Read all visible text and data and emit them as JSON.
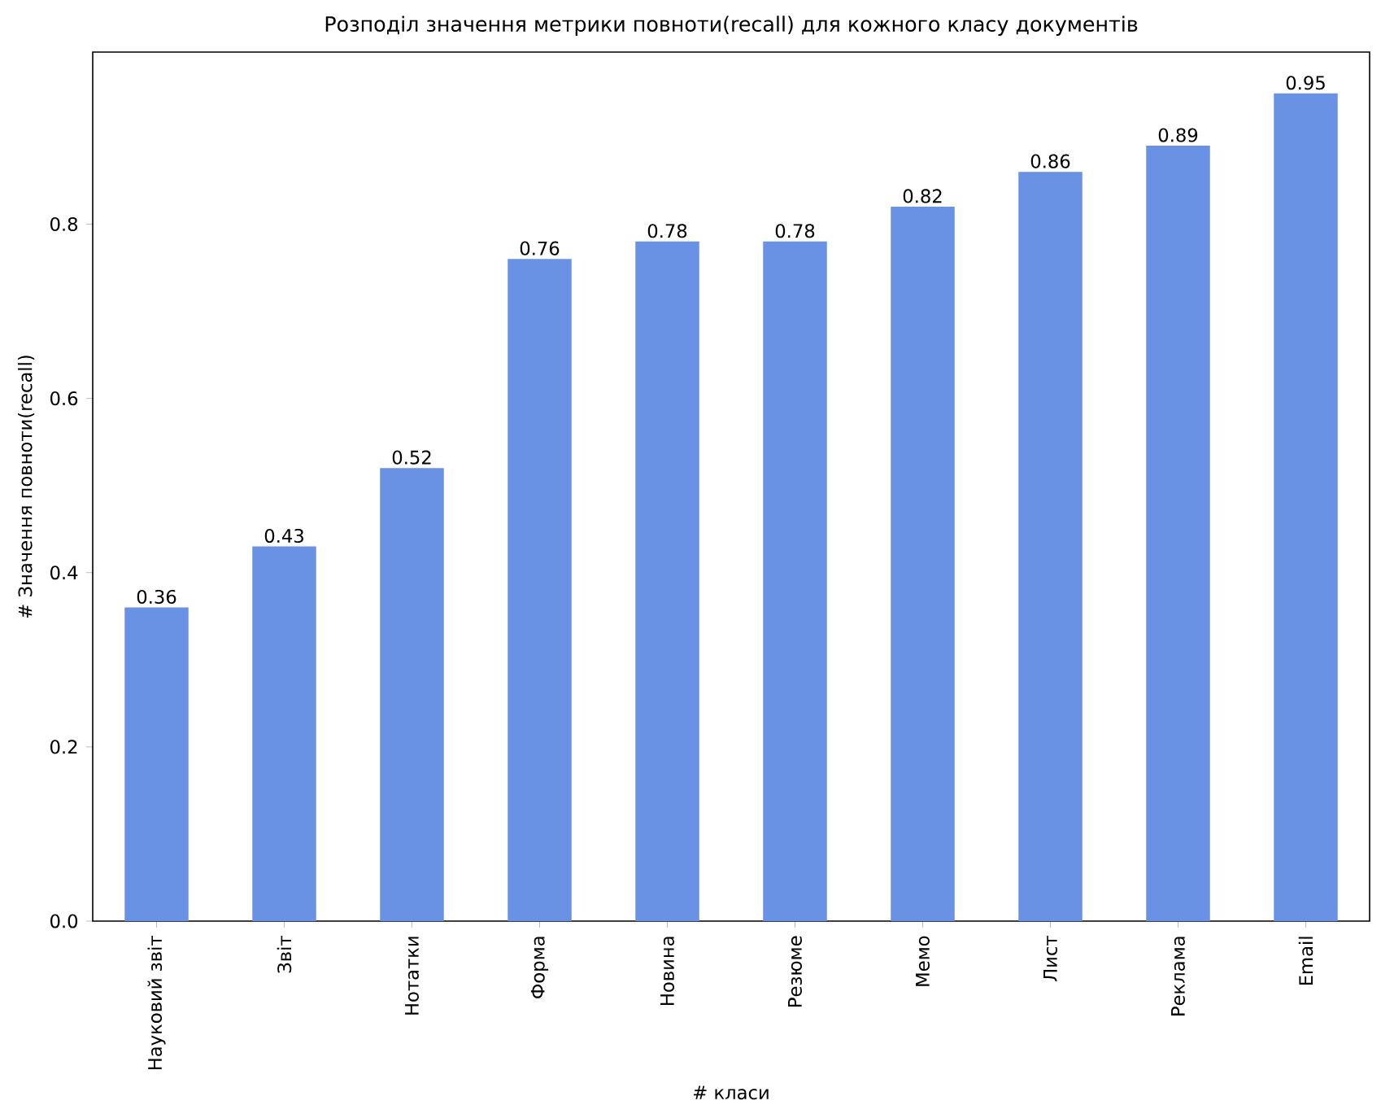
{
  "chart_data": {
    "type": "bar",
    "title": "Розподіл значення метрики повноти(recall) для кожного класу документів",
    "xlabel": "# класи",
    "ylabel": "# Значення повноти(recall)",
    "categories": [
      "Науковий звіт",
      "Звіт",
      "Нотатки",
      "Форма",
      "Новина",
      "Резюме",
      "Мемо",
      "Лист",
      "Реклама",
      "Email"
    ],
    "values": [
      0.36,
      0.43,
      0.52,
      0.76,
      0.78,
      0.78,
      0.82,
      0.86,
      0.89,
      0.95
    ],
    "color": "#6a92e4",
    "data_labels": true,
    "ylim": [
      0,
      0.9975
    ],
    "yticks": [
      {
        "value": 0,
        "label": "0.0"
      },
      0.2,
      0.4,
      0.6,
      0.8
    ],
    "grid": false,
    "legend": false
  }
}
